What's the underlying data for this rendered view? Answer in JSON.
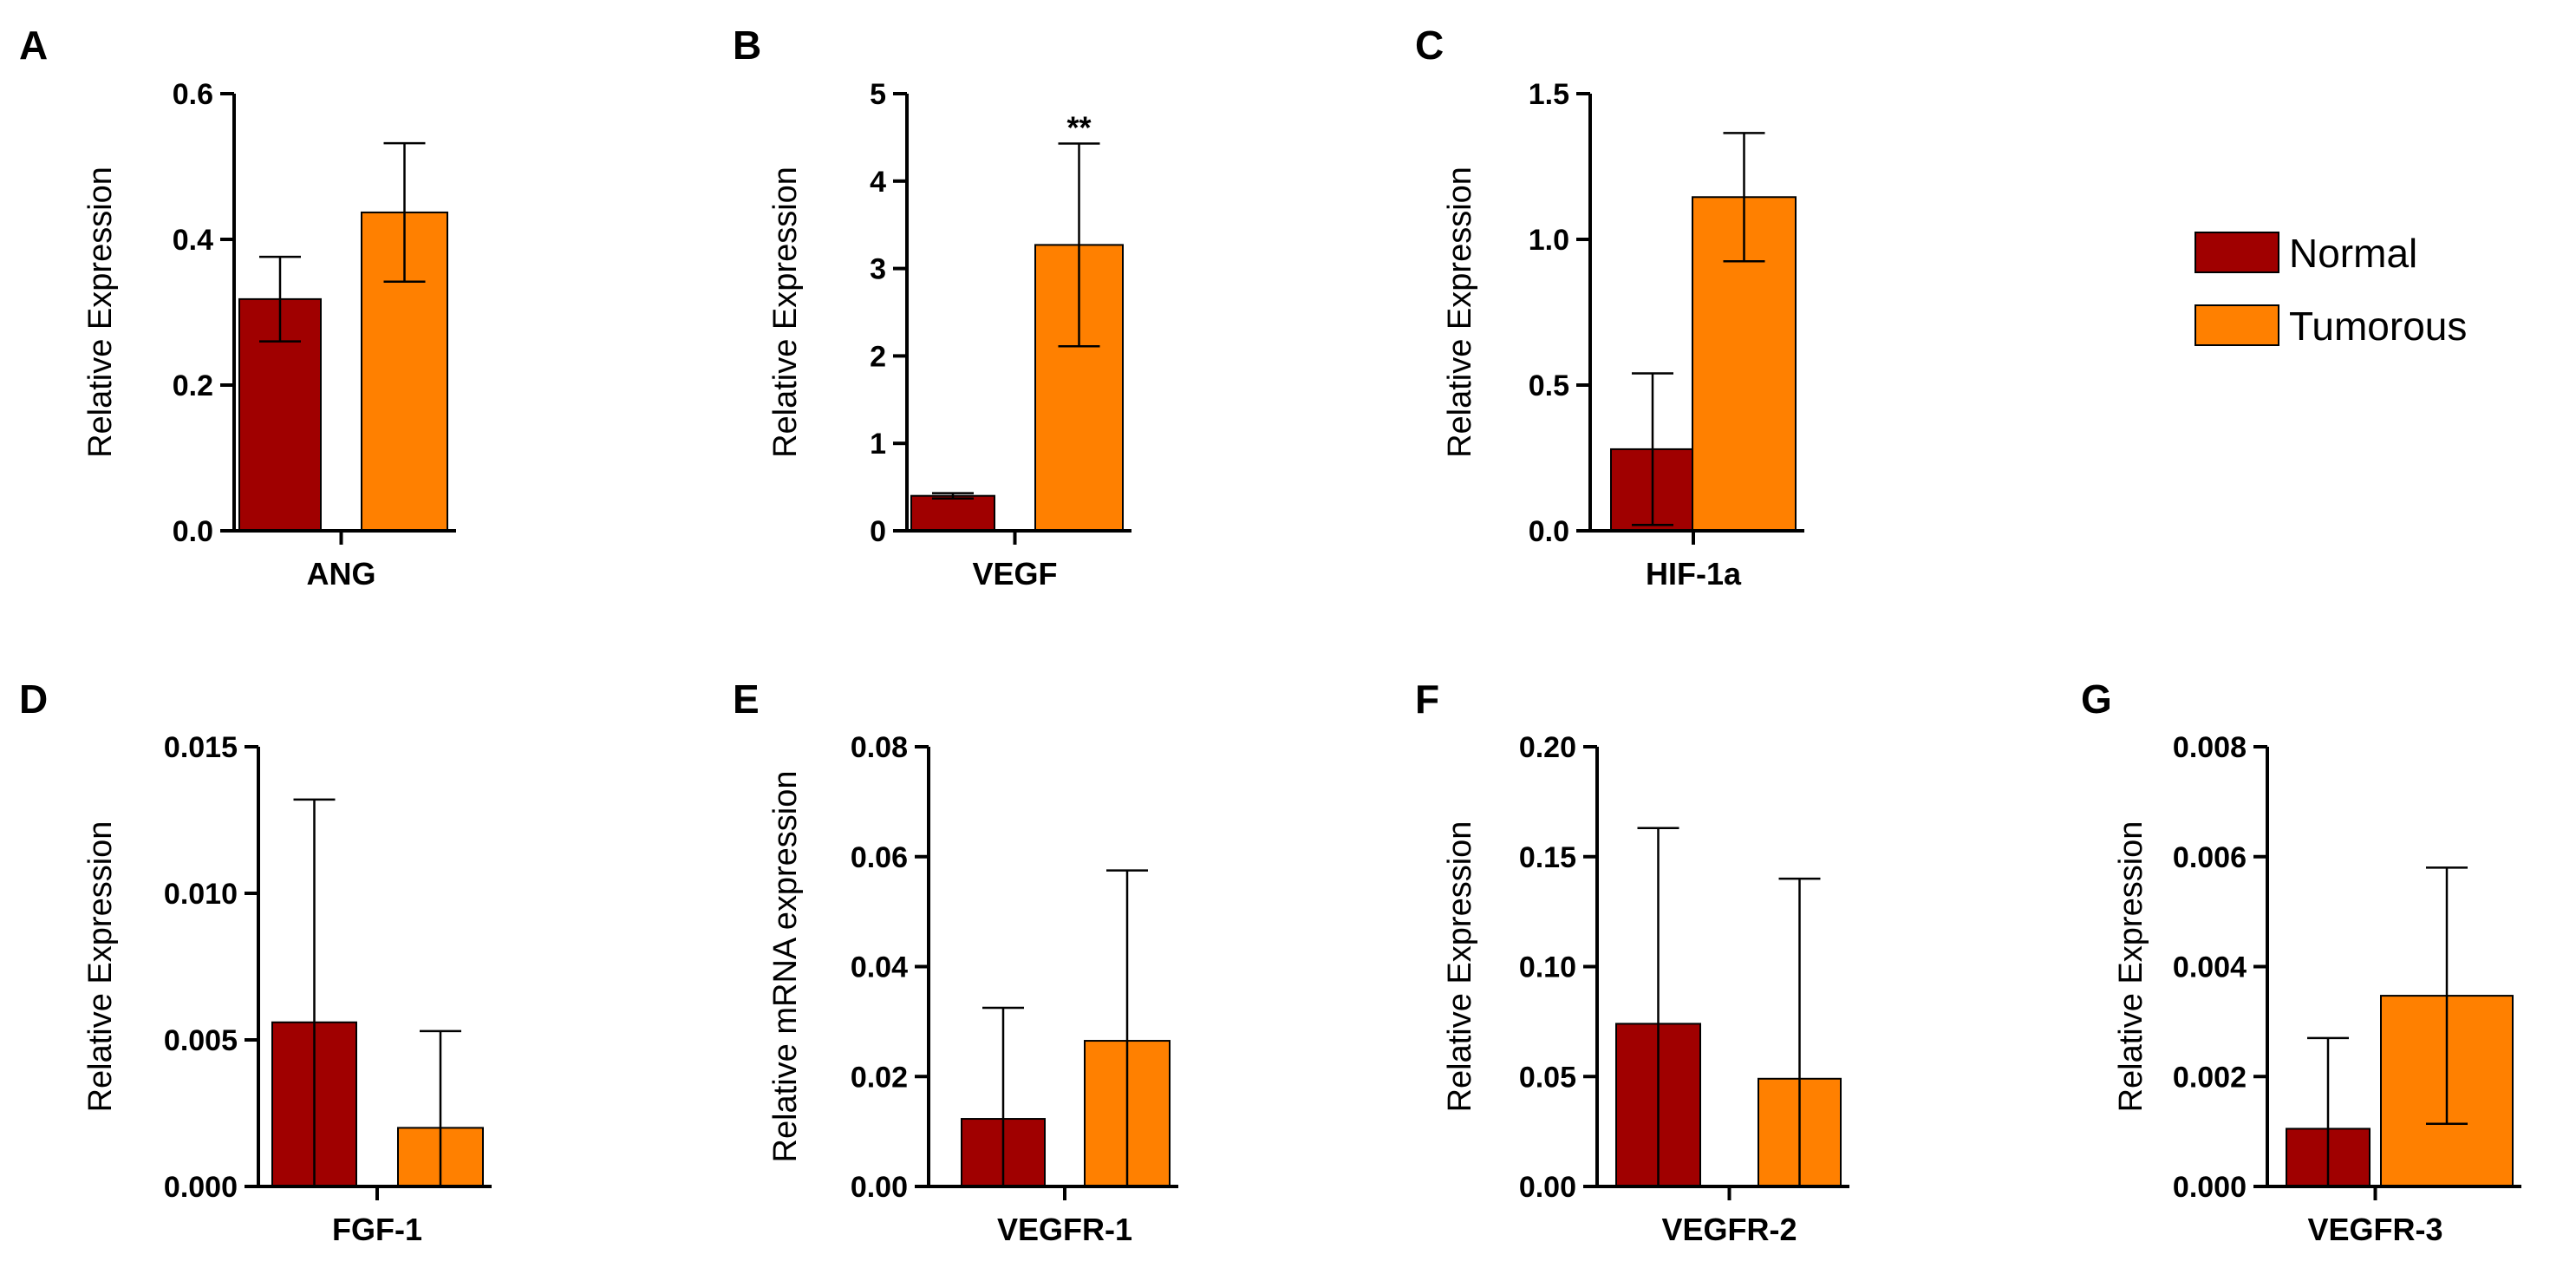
{
  "legend": {
    "items": [
      {
        "label": "Normal",
        "color": "#a00000"
      },
      {
        "label": "Tumorous",
        "color": "#ff8000"
      }
    ]
  },
  "chart_data": [
    {
      "panel": "A",
      "type": "bar",
      "category": "ANG",
      "ylabel": "Relative Expression",
      "ylim": [
        0,
        0.6
      ],
      "yticks": [
        "0.0",
        "0.2",
        "0.4",
        "0.6"
      ],
      "series": [
        {
          "name": "Normal",
          "value": 0.318,
          "error": 0.058
        },
        {
          "name": "Tumorous",
          "value": 0.437,
          "error": 0.095
        }
      ],
      "annotation": ""
    },
    {
      "panel": "B",
      "type": "bar",
      "category": "VEGF",
      "ylabel": "Relative Expression",
      "ylim": [
        0,
        5
      ],
      "yticks": [
        "0",
        "1",
        "2",
        "3",
        "4",
        "5"
      ],
      "series": [
        {
          "name": "Normal",
          "value": 0.4,
          "error": 0.03
        },
        {
          "name": "Tumorous",
          "value": 3.27,
          "error": 1.16
        }
      ],
      "annotation": "**"
    },
    {
      "panel": "C",
      "type": "bar",
      "category": "HIF-1a",
      "ylabel": "Relative Expression",
      "ylim": [
        0,
        1.5
      ],
      "yticks": [
        "0.0",
        "0.5",
        "1.0",
        "1.5"
      ],
      "series": [
        {
          "name": "Normal",
          "value": 0.28,
          "error": 0.26
        },
        {
          "name": "Tumorous",
          "value": 1.145,
          "error": 0.22
        }
      ],
      "annotation": ""
    },
    {
      "panel": "D",
      "type": "bar",
      "category": "FGF-1",
      "ylabel": "Relative Expression",
      "ylim": [
        0,
        0.015
      ],
      "yticks": [
        "0.000",
        "0.005",
        "0.010",
        "0.015"
      ],
      "series": [
        {
          "name": "Normal",
          "value": 0.0056,
          "error": 0.0076
        },
        {
          "name": "Tumorous",
          "value": 0.002,
          "error": 0.0033
        }
      ],
      "annotation": ""
    },
    {
      "panel": "E",
      "type": "bar",
      "category": "VEGFR-1",
      "ylabel": "Relative mRNA expression",
      "ylim": [
        0,
        0.08
      ],
      "yticks": [
        "0.00",
        "0.02",
        "0.04",
        "0.06",
        "0.08"
      ],
      "series": [
        {
          "name": "Normal",
          "value": 0.0123,
          "error": 0.0202
        },
        {
          "name": "Tumorous",
          "value": 0.0265,
          "error": 0.031
        }
      ],
      "annotation": ""
    },
    {
      "panel": "F",
      "type": "bar",
      "category": "VEGFR-2",
      "ylabel": "Relative Expression",
      "ylim": [
        0,
        0.2
      ],
      "yticks": [
        "0.00",
        "0.05",
        "0.10",
        "0.15",
        "0.20"
      ],
      "series": [
        {
          "name": "Normal",
          "value": 0.074,
          "error": 0.089
        },
        {
          "name": "Tumorous",
          "value": 0.049,
          "error": 0.091
        }
      ],
      "annotation": ""
    },
    {
      "panel": "G",
      "type": "bar",
      "category": "VEGFR-3",
      "ylabel": "Relative Expression",
      "ylim": [
        0,
        0.008
      ],
      "yticks": [
        "0.000",
        "0.002",
        "0.004",
        "0.006",
        "0.008"
      ],
      "series": [
        {
          "name": "Normal",
          "value": 0.00105,
          "error": 0.00165
        },
        {
          "name": "Tumorous",
          "value": 0.00347,
          "error": 0.00233
        }
      ],
      "annotation": ""
    }
  ]
}
